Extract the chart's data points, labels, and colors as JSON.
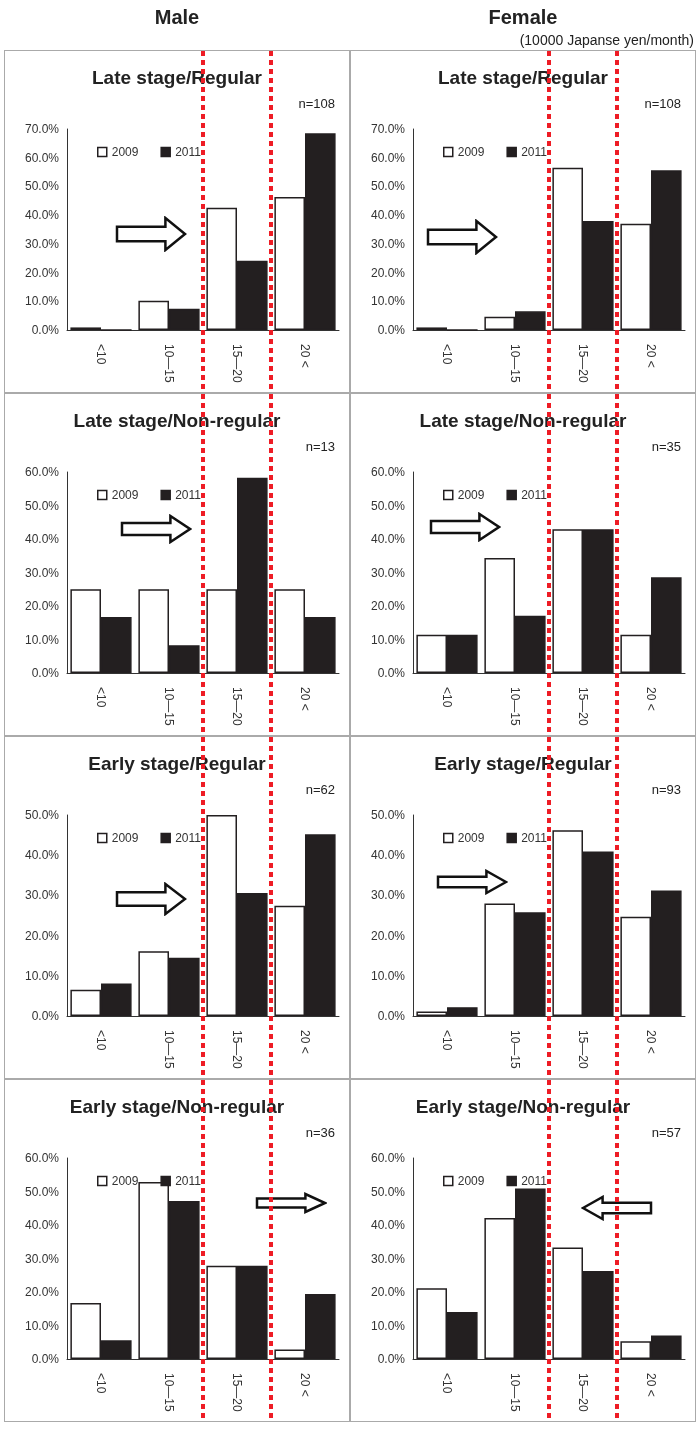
{
  "chart_data": [
    {
      "type": "bar",
      "subtitle": "Male",
      "title": "Late stage/Regular",
      "annotations": [
        "n=108"
      ],
      "categories": [
        "<10",
        "10—15",
        "15—20",
        "20 <"
      ],
      "series": [
        {
          "name": "2009",
          "color": "#ffffff",
          "values": [
            0.9,
            10.2,
            42.6,
            46.3
          ]
        },
        {
          "name": "2011",
          "color": "#231f20",
          "values": [
            0,
            7.4,
            24.1,
            68.5
          ]
        }
      ],
      "ylim": [
        0,
        70
      ],
      "yticks": [
        {
          "value": 0,
          "label": "0.0%"
        },
        {
          "value": 10,
          "label": "10.0%"
        },
        {
          "value": 20,
          "label": "20.0%"
        },
        {
          "value": 30,
          "label": "30.0%"
        },
        {
          "value": 40,
          "label": "40.0%"
        },
        {
          "value": 50,
          "label": "50.0%"
        },
        {
          "value": 60,
          "label": "60.0%"
        },
        {
          "value": 70,
          "label": "70.0%"
        }
      ],
      "legend": "top left",
      "grid": false
    },
    {
      "type": "bar",
      "subtitle": "Female",
      "xlabel": "(10000 Japanse yen/month)",
      "title": "Late stage/Regular",
      "annotations": [
        "n=108"
      ],
      "categories": [
        "<10",
        "10—15",
        "15—20",
        "20 <"
      ],
      "series": [
        {
          "name": "2009",
          "color": "#ffffff",
          "values": [
            0.9,
            4.6,
            56.5,
            37.0
          ]
        },
        {
          "name": "2011",
          "color": "#231f20",
          "values": [
            0,
            6.5,
            38.0,
            55.6
          ]
        }
      ],
      "ylim": [
        0,
        70
      ],
      "yticks": [
        {
          "value": 0,
          "label": "0.0%"
        },
        {
          "value": 10,
          "label": "10.0%"
        },
        {
          "value": 20,
          "label": "20.0%"
        },
        {
          "value": 30,
          "label": "30.0%"
        },
        {
          "value": 40,
          "label": "40.0%"
        },
        {
          "value": 50,
          "label": "50.0%"
        },
        {
          "value": 60,
          "label": "60.0%"
        },
        {
          "value": 70,
          "label": "70.0%"
        }
      ],
      "legend": "top left",
      "grid": false
    },
    {
      "type": "bar",
      "title": "Late stage/Non-regular",
      "annotations": [
        "n=13"
      ],
      "categories": [
        "<10",
        "10—15",
        "15—20",
        "20 <"
      ],
      "series": [
        {
          "name": "2009",
          "color": "#ffffff",
          "values": [
            25.0,
            25.0,
            25.0,
            25.0
          ]
        },
        {
          "name": "2011",
          "color": "#231f20",
          "values": [
            16.7,
            8.3,
            58.3,
            16.7
          ]
        }
      ],
      "ylim": [
        0,
        60
      ],
      "yticks": [
        {
          "value": 0,
          "label": "0.0%"
        },
        {
          "value": 10,
          "label": "10.0%"
        },
        {
          "value": 20,
          "label": "20.0%"
        },
        {
          "value": 30,
          "label": "30.0%"
        },
        {
          "value": 40,
          "label": "40.0%"
        },
        {
          "value": 50,
          "label": "50.0%"
        },
        {
          "value": 60,
          "label": "60.0%"
        }
      ],
      "legend": "top left",
      "grid": false
    },
    {
      "type": "bar",
      "title": "Late stage/Non-regular",
      "annotations": [
        "n=35"
      ],
      "categories": [
        "<10",
        "10—15",
        "15—20",
        "20 <"
      ],
      "series": [
        {
          "name": "2009",
          "color": "#ffffff",
          "values": [
            11.4,
            34.3,
            42.9,
            11.4
          ]
        },
        {
          "name": "2011",
          "color": "#231f20",
          "values": [
            11.4,
            17.1,
            42.9,
            28.6
          ]
        }
      ],
      "ylim": [
        0,
        60
      ],
      "yticks": [
        {
          "value": 0,
          "label": "0.0%"
        },
        {
          "value": 10,
          "label": "10.0%"
        },
        {
          "value": 20,
          "label": "20.0%"
        },
        {
          "value": 30,
          "label": "30.0%"
        },
        {
          "value": 40,
          "label": "40.0%"
        },
        {
          "value": 50,
          "label": "50.0%"
        },
        {
          "value": 60,
          "label": "60.0%"
        }
      ],
      "legend": "top left",
      "grid": false
    },
    {
      "type": "bar",
      "title": "Early stage/Regular",
      "annotations": [
        "n=62"
      ],
      "categories": [
        "<10",
        "10—15",
        "15—20",
        "20 <"
      ],
      "series": [
        {
          "name": "2009",
          "color": "#ffffff",
          "values": [
            6.5,
            16.1,
            50.0,
            27.4
          ]
        },
        {
          "name": "2011",
          "color": "#231f20",
          "values": [
            8.1,
            14.5,
            30.6,
            45.2
          ]
        }
      ],
      "ylim": [
        0,
        50
      ],
      "yticks": [
        {
          "value": 0,
          "label": "0.0%"
        },
        {
          "value": 10,
          "label": "10.0%"
        },
        {
          "value": 20,
          "label": "20.0%"
        },
        {
          "value": 30,
          "label": "30.0%"
        },
        {
          "value": 40,
          "label": "40.0%"
        },
        {
          "value": 50,
          "label": "50.0%"
        }
      ],
      "legend": "top left",
      "grid": false
    },
    {
      "type": "bar",
      "title": "Early stage/Regular",
      "annotations": [
        "n=93"
      ],
      "categories": [
        "<10",
        "10—15",
        "15—20",
        "20 <"
      ],
      "series": [
        {
          "name": "2009",
          "color": "#ffffff",
          "values": [
            1.1,
            28.0,
            46.2,
            24.7
          ]
        },
        {
          "name": "2011",
          "color": "#231f20",
          "values": [
            2.2,
            25.8,
            40.9,
            31.2
          ]
        }
      ],
      "ylim": [
        0,
        50
      ],
      "yticks": [
        {
          "value": 0,
          "label": "0.0%"
        },
        {
          "value": 10,
          "label": "10.0%"
        },
        {
          "value": 20,
          "label": "20.0%"
        },
        {
          "value": 30,
          "label": "30.0%"
        },
        {
          "value": 40,
          "label": "40.0%"
        },
        {
          "value": 50,
          "label": "50.0%"
        }
      ],
      "legend": "top left",
      "grid": false
    },
    {
      "type": "bar",
      "title": "Early stage/Non-regular",
      "annotations": [
        "n=36"
      ],
      "categories": [
        "<10",
        "10—15",
        "15—20",
        "20 <"
      ],
      "series": [
        {
          "name": "2009",
          "color": "#ffffff",
          "values": [
            16.7,
            52.8,
            27.8,
            2.8
          ]
        },
        {
          "name": "2011",
          "color": "#231f20",
          "values": [
            5.6,
            47.2,
            27.8,
            19.4
          ]
        }
      ],
      "ylim": [
        0,
        60
      ],
      "yticks": [
        {
          "value": 0,
          "label": "0.0%"
        },
        {
          "value": 10,
          "label": "10.0%"
        },
        {
          "value": 20,
          "label": "20.0%"
        },
        {
          "value": 30,
          "label": "30.0%"
        },
        {
          "value": 40,
          "label": "40.0%"
        },
        {
          "value": 50,
          "label": "50.0%"
        },
        {
          "value": 60,
          "label": "60.0%"
        }
      ],
      "legend": "top left",
      "grid": false
    },
    {
      "type": "bar",
      "title": "Early stage/Non-regular",
      "annotations": [
        "n=57"
      ],
      "categories": [
        "<10",
        "10—15",
        "15—20",
        "20 <"
      ],
      "series": [
        {
          "name": "2009",
          "color": "#ffffff",
          "values": [
            21.1,
            42.1,
            33.3,
            5.3
          ]
        },
        {
          "name": "2011",
          "color": "#231f20",
          "values": [
            14.0,
            50.9,
            26.3,
            7.0
          ]
        }
      ],
      "ylim": [
        0,
        60
      ],
      "yticks": [
        {
          "value": 0,
          "label": "0.0%"
        },
        {
          "value": 10,
          "label": "10.0%"
        },
        {
          "value": 20,
          "label": "20.0%"
        },
        {
          "value": 30,
          "label": "30.0%"
        },
        {
          "value": 40,
          "label": "40.0%"
        },
        {
          "value": 50,
          "label": "50.0%"
        },
        {
          "value": 60,
          "label": "60.0%"
        }
      ],
      "legend": "top left",
      "grid": false
    }
  ]
}
